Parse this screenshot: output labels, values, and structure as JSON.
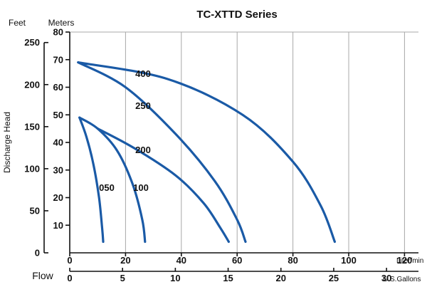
{
  "chart_data": {
    "type": "line",
    "title": "TC-XTTD Series",
    "ylabel": "Discharge Head",
    "flow_label": "Flow",
    "y_units": {
      "feet": "Feet",
      "meters": "Meters"
    },
    "x_units": {
      "liters": "Liter/min",
      "gallons": "U.S.Gallons"
    },
    "x_liter_ticks": [
      "0",
      "20",
      "40",
      "60",
      "80",
      "100",
      "120"
    ],
    "x_liter_range": [
      0,
      125
    ],
    "x_gallon_ticks": [
      "0",
      "5",
      "10",
      "15",
      "20",
      "25",
      "30"
    ],
    "y_meter_ticks": [
      "10",
      "20",
      "30",
      "40",
      "50",
      "60",
      "70",
      "80"
    ],
    "y_meter_range": [
      0,
      80
    ],
    "y_feet_ticks": [
      "0",
      "50",
      "100",
      "150",
      "200",
      "250"
    ],
    "grid": "vertical lines at x ticks",
    "curve_color": "#1a5aa6",
    "series": [
      {
        "name": "050",
        "x": [
          3.5,
          6,
          8.5,
          10.5,
          11.6,
          12
        ],
        "y": [
          49,
          42,
          32,
          20,
          9,
          4
        ]
      },
      {
        "name": "100",
        "x": [
          3.5,
          10,
          17,
          22.5,
          26,
          27
        ],
        "y": [
          49,
          45,
          37,
          25,
          12,
          4
        ]
      },
      {
        "name": "200",
        "x": [
          10,
          23,
          38,
          48,
          54,
          57
        ],
        "y": [
          45,
          38,
          28,
          18,
          9,
          4
        ]
      },
      {
        "name": "250",
        "x": [
          3,
          20,
          38,
          52,
          60,
          63
        ],
        "y": [
          69,
          60,
          43,
          26,
          12,
          4
        ]
      },
      {
        "name": "400",
        "x": [
          3,
          35,
          62,
          80,
          90,
          95
        ],
        "y": [
          69,
          63,
          50,
          33,
          17,
          4
        ]
      }
    ]
  }
}
